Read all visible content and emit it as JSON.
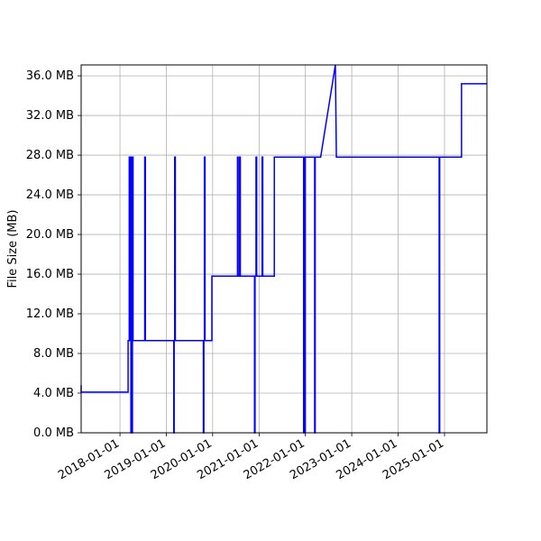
{
  "chart_data": {
    "type": "line",
    "title": "",
    "xlabel": "",
    "ylabel": "File Size (MB)",
    "grid": true,
    "legend": "none",
    "line_color": "#0000ff",
    "x_axis": {
      "kind": "date",
      "range": [
        "2017-03-01",
        "2025-12-01"
      ],
      "ticks": [
        "2018-01-01",
        "2019-01-01",
        "2020-01-01",
        "2021-01-01",
        "2022-01-01",
        "2023-01-01",
        "2024-01-01",
        "2025-01-01"
      ]
    },
    "y_axis": {
      "range": [
        0,
        37.1
      ],
      "ticks": [
        0,
        4,
        8,
        12,
        16,
        20,
        24,
        28,
        32,
        36
      ],
      "tick_labels": [
        "0.0 MB",
        "4.0 MB",
        "8.0 MB",
        "12.0 MB",
        "16.0 MB",
        "20.0 MB",
        "24.0 MB",
        "28.0 MB",
        "32.0 MB",
        "36.0 MB"
      ]
    },
    "series": [
      {
        "points": [
          [
            "2017-03-01",
            4.8
          ],
          [
            "2017-03-01",
            4.1
          ],
          [
            "2018-03-06",
            4.1
          ],
          [
            "2018-03-06",
            9.3
          ],
          [
            "2018-03-15",
            9.3
          ],
          [
            "2018-03-15",
            27.8
          ],
          [
            "2018-03-20",
            27.8
          ],
          [
            "2018-03-20",
            9.3
          ],
          [
            "2018-03-24",
            9.3
          ],
          [
            "2018-03-24",
            27.8
          ],
          [
            "2018-03-28",
            27.8
          ],
          [
            "2018-03-28",
            0
          ],
          [
            "2018-04-01",
            0
          ],
          [
            "2018-04-01",
            27.8
          ],
          [
            "2018-04-05",
            27.8
          ],
          [
            "2018-04-05",
            0
          ],
          [
            "2018-04-09",
            0
          ],
          [
            "2018-04-09",
            27.8
          ],
          [
            "2018-04-14",
            27.8
          ],
          [
            "2018-04-14",
            9.3
          ],
          [
            "2018-07-15",
            9.3
          ],
          [
            "2018-07-15",
            27.8
          ],
          [
            "2018-07-20",
            27.8
          ],
          [
            "2018-07-20",
            9.3
          ],
          [
            "2019-03-01",
            9.3
          ],
          [
            "2019-03-01",
            0
          ],
          [
            "2019-03-04",
            0
          ],
          [
            "2019-03-04",
            9.3
          ],
          [
            "2019-03-08",
            9.3
          ],
          [
            "2019-03-08",
            27.8
          ],
          [
            "2019-03-13",
            27.8
          ],
          [
            "2019-03-13",
            9.3
          ],
          [
            "2019-10-20",
            9.3
          ],
          [
            "2019-10-20",
            0
          ],
          [
            "2019-10-24",
            0
          ],
          [
            "2019-10-24",
            9.3
          ],
          [
            "2019-10-28",
            9.3
          ],
          [
            "2019-10-28",
            27.8
          ],
          [
            "2019-11-02",
            27.8
          ],
          [
            "2019-11-02",
            9.3
          ],
          [
            "2019-12-26",
            9.3
          ],
          [
            "2019-12-26",
            15.8
          ],
          [
            "2020-07-15",
            15.8
          ],
          [
            "2020-07-15",
            27.8
          ],
          [
            "2020-07-20",
            27.8
          ],
          [
            "2020-07-20",
            15.8
          ],
          [
            "2020-08-01",
            15.8
          ],
          [
            "2020-08-01",
            27.8
          ],
          [
            "2020-08-06",
            27.8
          ],
          [
            "2020-08-06",
            15.8
          ],
          [
            "2020-11-26",
            15.8
          ],
          [
            "2020-11-26",
            0
          ],
          [
            "2020-11-30",
            0
          ],
          [
            "2020-11-30",
            15.8
          ],
          [
            "2020-12-08",
            15.8
          ],
          [
            "2020-12-08",
            27.8
          ],
          [
            "2020-12-13",
            27.8
          ],
          [
            "2020-12-13",
            15.8
          ],
          [
            "2021-01-25",
            15.8
          ],
          [
            "2021-01-25",
            27.8
          ],
          [
            "2021-01-30",
            27.8
          ],
          [
            "2021-01-30",
            15.8
          ],
          [
            "2021-05-01",
            15.8
          ],
          [
            "2021-05-01",
            27.8
          ],
          [
            "2021-12-18",
            27.8
          ],
          [
            "2021-12-18",
            0
          ],
          [
            "2021-12-22",
            0
          ],
          [
            "2021-12-22",
            27.8
          ],
          [
            "2021-12-27",
            27.8
          ],
          [
            "2021-12-27",
            0
          ],
          [
            "2021-12-31",
            0
          ],
          [
            "2021-12-31",
            27.8
          ],
          [
            "2022-03-15",
            27.8
          ],
          [
            "2022-03-15",
            0
          ],
          [
            "2022-03-19",
            0
          ],
          [
            "2022-03-19",
            27.8
          ],
          [
            "2022-05-01",
            27.8
          ],
          [
            "2022-08-25",
            37.1
          ],
          [
            "2022-09-02",
            27.8
          ],
          [
            "2024-11-20",
            27.8
          ],
          [
            "2024-11-20",
            0
          ],
          [
            "2024-11-24",
            0
          ],
          [
            "2024-11-24",
            27.8
          ],
          [
            "2025-05-15",
            27.8
          ],
          [
            "2025-05-15",
            35.2
          ],
          [
            "2025-12-01",
            35.2
          ]
        ]
      }
    ]
  }
}
